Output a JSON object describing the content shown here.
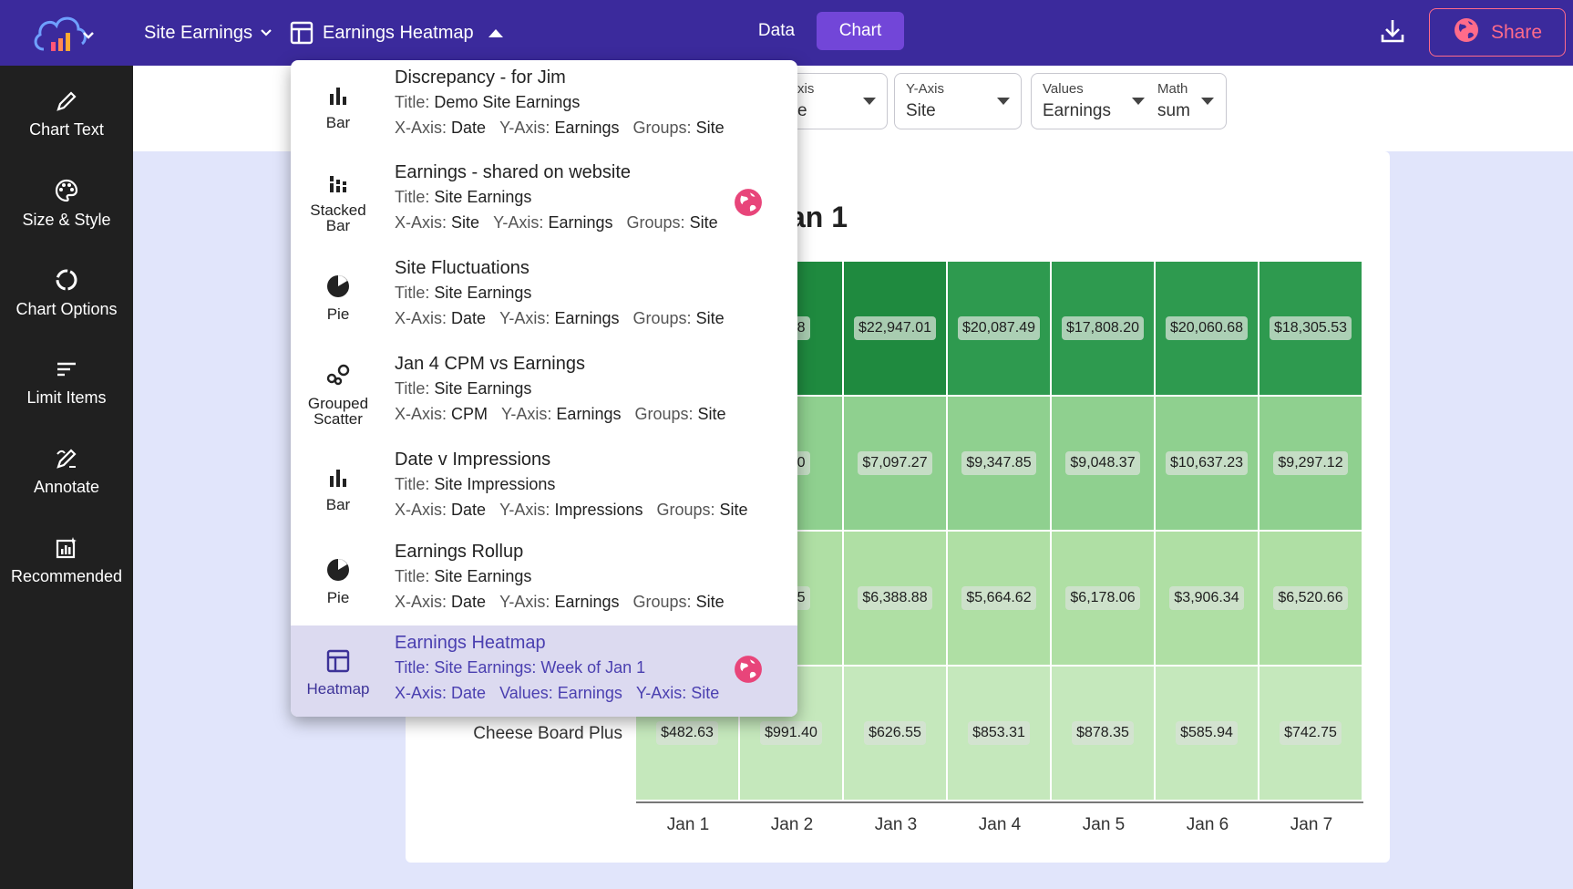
{
  "topbar": {
    "site_menu": "Site Earnings",
    "chart_menu": "Earnings Heatmap",
    "data_tab": "Data",
    "chart_tab": "Chart",
    "share": "Share"
  },
  "sidebar": {
    "items": [
      {
        "label": "Chart Text",
        "icon": "pencil-icon"
      },
      {
        "label": "Size & Style",
        "icon": "palette-icon"
      },
      {
        "label": "Chart Options",
        "icon": "donut-icon"
      },
      {
        "label": "Limit Items",
        "icon": "lines-icon"
      },
      {
        "label": "Annotate",
        "icon": "annotate-icon"
      },
      {
        "label": "Recommended",
        "icon": "recommended-icon"
      }
    ]
  },
  "toolbar": {
    "xaxis": {
      "label": "xis",
      "value": "e"
    },
    "yaxis": {
      "label": "Y-Axis",
      "value": "Site"
    },
    "values": {
      "label": "Values",
      "value": "Earnings"
    },
    "math": {
      "label": "Math",
      "value": "sum"
    }
  },
  "menu": {
    "items": [
      {
        "icon_label": "Bar",
        "icon": "bar-chart-icon",
        "name": "Discrepancy - for Jim",
        "title_key": "Title:",
        "title": "Demo Site Earnings",
        "meta": [
          {
            "k": "X-Axis:",
            "v": "Date"
          },
          {
            "k": "Y-Axis:",
            "v": "Earnings"
          },
          {
            "k": "Groups:",
            "v": "Site"
          }
        ]
      },
      {
        "icon_label": "Stacked Bar",
        "icon": "stacked-bar-icon",
        "name": "Earnings - shared on website",
        "title_key": "Title:",
        "title": "Site Earnings",
        "shared": true,
        "meta": [
          {
            "k": "X-Axis:",
            "v": "Site"
          },
          {
            "k": "Y-Axis:",
            "v": "Earnings"
          },
          {
            "k": "Groups:",
            "v": "Site"
          }
        ]
      },
      {
        "icon_label": "Pie",
        "icon": "pie-chart-icon",
        "name": "Site Fluctuations",
        "title_key": "Title:",
        "title": "Site Earnings",
        "meta": [
          {
            "k": "X-Axis:",
            "v": "Date"
          },
          {
            "k": "Y-Axis:",
            "v": "Earnings"
          },
          {
            "k": "Groups:",
            "v": "Site"
          }
        ]
      },
      {
        "icon_label": "Grouped Scatter",
        "icon": "scatter-icon",
        "name": "Jan 4 CPM vs Earnings",
        "title_key": "Title:",
        "title": "Site Earnings",
        "meta": [
          {
            "k": "X-Axis:",
            "v": "CPM"
          },
          {
            "k": "Y-Axis:",
            "v": "Earnings"
          },
          {
            "k": "Groups:",
            "v": "Site"
          }
        ]
      },
      {
        "icon_label": "Bar",
        "icon": "bar-chart-icon",
        "name": "Date v Impressions",
        "title_key": "Title:",
        "title": "Site Impressions",
        "meta": [
          {
            "k": "X-Axis:",
            "v": "Date"
          },
          {
            "k": "Y-Axis:",
            "v": "Impressions"
          },
          {
            "k": "Groups:",
            "v": "Site"
          }
        ]
      },
      {
        "icon_label": "Pie",
        "icon": "pie-chart-icon",
        "name": "Earnings Rollup",
        "title_key": "Title:",
        "title": "Site Earnings",
        "meta": [
          {
            "k": "X-Axis:",
            "v": "Date"
          },
          {
            "k": "Y-Axis:",
            "v": "Earnings"
          },
          {
            "k": "Groups:",
            "v": "Site"
          }
        ]
      },
      {
        "icon_label": "Heatmap",
        "icon": "heatmap-icon",
        "name": "Earnings Heatmap",
        "title_key": "Title:",
        "title": "Site Earnings: Week of Jan 1",
        "shared": true,
        "active": true,
        "meta": [
          {
            "k": "X-Axis:",
            "v": "Date"
          },
          {
            "k": "Values:",
            "v": "Earnings"
          },
          {
            "k": "Y-Axis:",
            "v": "Site"
          }
        ]
      }
    ]
  },
  "chart_data": {
    "type": "heatmap",
    "title_visible": "an 1",
    "x": [
      "Jan 1",
      "Jan 2",
      "Jan 3",
      "Jan 4",
      "Jan 5",
      "Jan 6",
      "Jan 7"
    ],
    "rows": [
      {
        "label": "",
        "values": [
          "",
          "3.08",
          "$22,947.01",
          "$20,087.49",
          "$17,808.20",
          "$20,060.68",
          "$18,305.53"
        ]
      },
      {
        "label": "",
        "values": [
          "",
          "6.20",
          "$7,097.27",
          "$9,347.85",
          "$9,048.37",
          "$10,637.23",
          "$9,297.12"
        ]
      },
      {
        "label": "",
        "values": [
          "",
          "4.05",
          "$6,388.88",
          "$5,664.62",
          "$6,178.06",
          "$3,906.34",
          "$6,520.66"
        ]
      },
      {
        "label": "Cheese Board Plus",
        "values": [
          "$482.63",
          "$991.40",
          "$626.55",
          "$853.31",
          "$878.35",
          "$585.94",
          "$742.75"
        ]
      }
    ],
    "colors": [
      "#2e9a4f",
      "#8fd08f",
      "#afdfa4",
      "#c5e8bc"
    ],
    "colors_row0": [
      "#1f8a3f",
      "#1f8a3f",
      "#1f8a3f",
      "#2e9a4f",
      "#2e9a4f",
      "#2e9a4f",
      "#2e9a4f"
    ]
  },
  "colors": {
    "topbar": "#3b2a9c",
    "accent": "#7246d8",
    "share": "#ff6b8a",
    "sidebar": "#202020"
  }
}
